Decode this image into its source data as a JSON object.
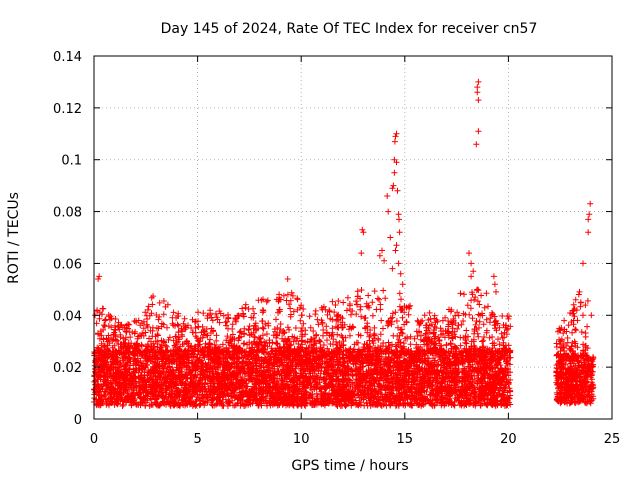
{
  "chart_data": {
    "type": "scatter",
    "title": "Day 145 of 2024, Rate Of TEC Index for receiver cn57",
    "xlabel": "GPS time / hours",
    "ylabel": "ROTI / TECUs",
    "xlim": [
      0,
      25
    ],
    "ylim": [
      0,
      0.14
    ],
    "x_ticks": [
      0,
      5,
      10,
      15,
      20,
      25
    ],
    "x_tick_labels": [
      "0",
      "5",
      "10",
      "15",
      "20",
      "25"
    ],
    "y_ticks": [
      0,
      0.02,
      0.04,
      0.06,
      0.08,
      0.1,
      0.12,
      0.14
    ],
    "y_tick_labels": [
      "0",
      "0.02",
      "0.04",
      "0.06",
      "0.08",
      "0.1",
      "0.12",
      "0.14"
    ],
    "grid": true,
    "marker": "+",
    "color": "#ff0000",
    "data_segments": [
      {
        "x_start": 0.0,
        "x_end": 20.1,
        "typical_min": 0.005,
        "typical_max": 0.026
      },
      {
        "x_start": 22.3,
        "x_end": 24.1,
        "typical_min": 0.006,
        "typical_max": 0.024
      }
    ],
    "envelope": [
      {
        "x": 0.1,
        "y": 0.042
      },
      {
        "x": 0.2,
        "y": 0.055
      },
      {
        "x": 0.4,
        "y": 0.043
      },
      {
        "x": 0.8,
        "y": 0.04
      },
      {
        "x": 1.5,
        "y": 0.036
      },
      {
        "x": 2.2,
        "y": 0.04
      },
      {
        "x": 2.8,
        "y": 0.048
      },
      {
        "x": 3.5,
        "y": 0.045
      },
      {
        "x": 4.5,
        "y": 0.038
      },
      {
        "x": 5.6,
        "y": 0.045
      },
      {
        "x": 6.5,
        "y": 0.04
      },
      {
        "x": 7.5,
        "y": 0.045
      },
      {
        "x": 8.5,
        "y": 0.048
      },
      {
        "x": 9.3,
        "y": 0.054
      },
      {
        "x": 10.3,
        "y": 0.04
      },
      {
        "x": 11.0,
        "y": 0.045
      },
      {
        "x": 12.0,
        "y": 0.046
      },
      {
        "x": 12.9,
        "y": 0.072
      },
      {
        "x": 13.6,
        "y": 0.065
      },
      {
        "x": 14.1,
        "y": 0.095
      },
      {
        "x": 14.5,
        "y": 0.109
      },
      {
        "x": 14.9,
        "y": 0.055
      },
      {
        "x": 15.5,
        "y": 0.042
      },
      {
        "x": 16.8,
        "y": 0.04
      },
      {
        "x": 17.5,
        "y": 0.045
      },
      {
        "x": 18.0,
        "y": 0.063
      },
      {
        "x": 18.5,
        "y": 0.129
      },
      {
        "x": 19.0,
        "y": 0.055
      },
      {
        "x": 19.6,
        "y": 0.04
      },
      {
        "x": 20.0,
        "y": 0.042
      },
      {
        "x": 22.5,
        "y": 0.035
      },
      {
        "x": 23.3,
        "y": 0.048
      },
      {
        "x": 23.6,
        "y": 0.06
      },
      {
        "x": 23.9,
        "y": 0.082
      }
    ],
    "outliers": [
      {
        "x": 0.05,
        "y": 0.04
      },
      {
        "x": 0.15,
        "y": 0.042
      },
      {
        "x": 0.2,
        "y": 0.054
      },
      {
        "x": 0.25,
        "y": 0.055
      },
      {
        "x": 9.35,
        "y": 0.054
      },
      {
        "x": 12.9,
        "y": 0.064
      },
      {
        "x": 12.95,
        "y": 0.073
      },
      {
        "x": 13.0,
        "y": 0.072
      },
      {
        "x": 13.8,
        "y": 0.063
      },
      {
        "x": 13.9,
        "y": 0.065
      },
      {
        "x": 14.0,
        "y": 0.061
      },
      {
        "x": 14.15,
        "y": 0.086
      },
      {
        "x": 14.2,
        "y": 0.08
      },
      {
        "x": 14.3,
        "y": 0.07
      },
      {
        "x": 14.4,
        "y": 0.089
      },
      {
        "x": 14.45,
        "y": 0.09
      },
      {
        "x": 14.5,
        "y": 0.095
      },
      {
        "x": 14.5,
        "y": 0.1
      },
      {
        "x": 14.52,
        "y": 0.107
      },
      {
        "x": 14.55,
        "y": 0.109
      },
      {
        "x": 14.6,
        "y": 0.11
      },
      {
        "x": 14.6,
        "y": 0.099
      },
      {
        "x": 14.65,
        "y": 0.088
      },
      {
        "x": 14.7,
        "y": 0.079
      },
      {
        "x": 14.72,
        "y": 0.077
      },
      {
        "x": 14.75,
        "y": 0.072
      },
      {
        "x": 14.6,
        "y": 0.067
      },
      {
        "x": 14.55,
        "y": 0.065
      },
      {
        "x": 14.7,
        "y": 0.06
      },
      {
        "x": 14.8,
        "y": 0.056
      },
      {
        "x": 14.4,
        "y": 0.058
      },
      {
        "x": 14.9,
        "y": 0.052
      },
      {
        "x": 18.1,
        "y": 0.064
      },
      {
        "x": 18.2,
        "y": 0.06
      },
      {
        "x": 18.2,
        "y": 0.055
      },
      {
        "x": 18.3,
        "y": 0.057
      },
      {
        "x": 18.4,
        "y": 0.047
      },
      {
        "x": 18.5,
        "y": 0.128
      },
      {
        "x": 18.5,
        "y": 0.126
      },
      {
        "x": 18.55,
        "y": 0.13
      },
      {
        "x": 18.55,
        "y": 0.123
      },
      {
        "x": 18.55,
        "y": 0.111
      },
      {
        "x": 18.45,
        "y": 0.106
      },
      {
        "x": 18.5,
        "y": 0.05
      },
      {
        "x": 19.3,
        "y": 0.055
      },
      {
        "x": 19.35,
        "y": 0.052
      },
      {
        "x": 19.4,
        "y": 0.049
      },
      {
        "x": 23.3,
        "y": 0.042
      },
      {
        "x": 23.4,
        "y": 0.048
      },
      {
        "x": 23.5,
        "y": 0.045
      },
      {
        "x": 23.6,
        "y": 0.06
      },
      {
        "x": 23.6,
        "y": 0.04
      },
      {
        "x": 23.85,
        "y": 0.077
      },
      {
        "x": 23.9,
        "y": 0.079
      },
      {
        "x": 23.95,
        "y": 0.083
      },
      {
        "x": 23.85,
        "y": 0.072
      },
      {
        "x": 24.0,
        "y": 0.04
      }
    ]
  }
}
